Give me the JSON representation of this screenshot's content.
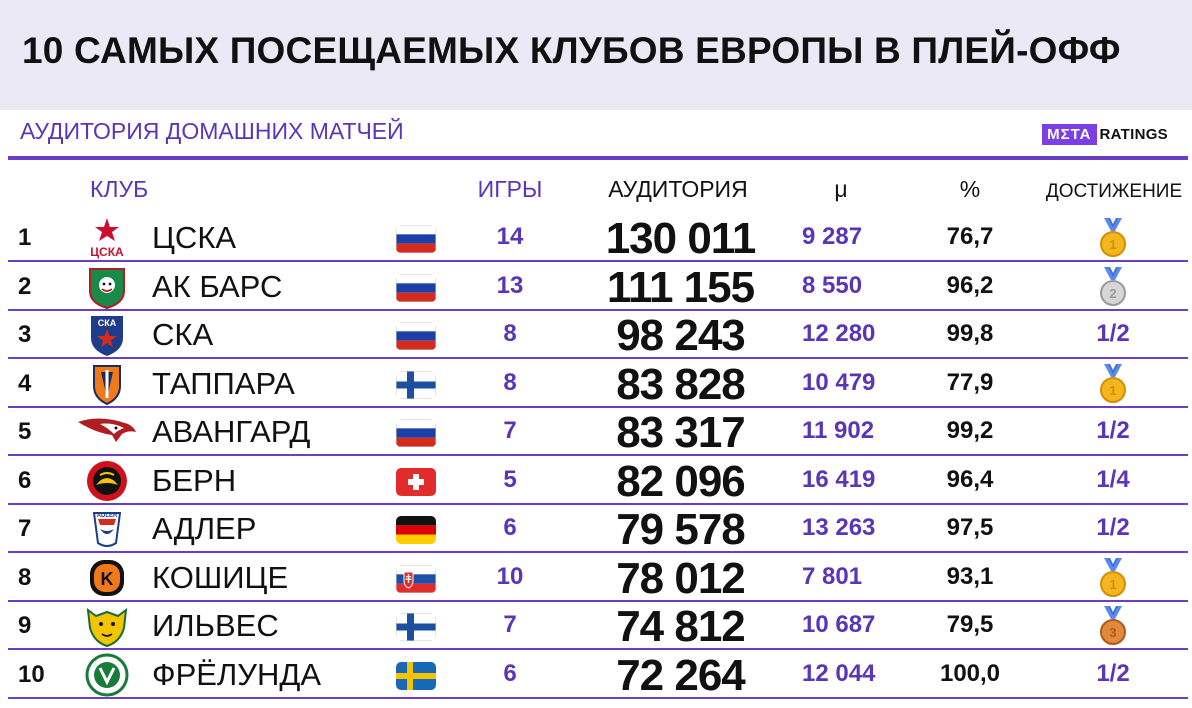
{
  "title": "10 САМЫХ ПОСЕЩАЕМЫХ КЛУБОВ ЕВРОПЫ В  ПЛЕЙ-ОФФ",
  "subtitle": "АУДИТОРИЯ ДОМАШНИХ МАТЧЕЙ",
  "logo": {
    "meta": "MΣTA",
    "ratings": "RATINGS"
  },
  "headers": {
    "club": "КЛУБ",
    "games": "ИГРЫ",
    "audience": "АУДИТОРИЯ",
    "avg": "μ",
    "pct": "%",
    "achievement": "ДОСТИЖЕНИЕ"
  },
  "colors": {
    "accent": "#6a3fc5",
    "accent_text": "#5b35b8",
    "header_bg": "#ece9f6"
  },
  "rows": [
    {
      "rank": "1",
      "club": "ЦСКА",
      "flag": "russia",
      "emblem": "cska-icon",
      "games": "14",
      "audience": "130 011",
      "avg": "9 287",
      "pct": "76,7",
      "achievement": "",
      "medal": "gold"
    },
    {
      "rank": "2",
      "club": "АК БАРС",
      "flag": "russia",
      "emblem": "akbars-icon",
      "games": "13",
      "audience": "111 155",
      "avg": "8 550",
      "pct": "96,2",
      "achievement": "",
      "medal": "silver"
    },
    {
      "rank": "3",
      "club": "СКА",
      "flag": "russia",
      "emblem": "ska-icon",
      "games": "8",
      "audience": "98 243",
      "avg": "12 280",
      "pct": "99,8",
      "achievement": "1/2",
      "medal": ""
    },
    {
      "rank": "4",
      "club": "ТАППАРА",
      "flag": "finland",
      "emblem": "tappara-icon",
      "games": "8",
      "audience": "83 828",
      "avg": "10 479",
      "pct": "77,9",
      "achievement": "",
      "medal": "gold"
    },
    {
      "rank": "5",
      "club": "АВАНГАРД",
      "flag": "russia",
      "emblem": "avangard-icon",
      "games": "7",
      "audience": "83 317",
      "avg": "11 902",
      "pct": "99,2",
      "achievement": "1/2",
      "medal": ""
    },
    {
      "rank": "6",
      "club": "БЕРН",
      "flag": "switzerland",
      "emblem": "bern-icon",
      "games": "5",
      "audience": "82 096",
      "avg": "16 419",
      "pct": "96,4",
      "achievement": "1/4",
      "medal": ""
    },
    {
      "rank": "7",
      "club": "АДЛЕР",
      "flag": "germany",
      "emblem": "adler-icon",
      "games": "6",
      "audience": "79 578",
      "avg": "13 263",
      "pct": "97,5",
      "achievement": "1/2",
      "medal": ""
    },
    {
      "rank": "8",
      "club": "КОШИЦЕ",
      "flag": "slovakia",
      "emblem": "kosice-icon",
      "games": "10",
      "audience": "78 012",
      "avg": "7 801",
      "pct": "93,1",
      "achievement": "",
      "medal": "gold"
    },
    {
      "rank": "9",
      "club": "ИЛЬВЕС",
      "flag": "finland",
      "emblem": "ilves-icon",
      "games": "7",
      "audience": "74 812",
      "avg": "10 687",
      "pct": "79,5",
      "achievement": "",
      "medal": "bronze"
    },
    {
      "rank": "10",
      "club": "ФРЁЛУНДА",
      "flag": "sweden",
      "emblem": "frolunda-icon",
      "games": "6",
      "audience": "72 264",
      "avg": "12 044",
      "pct": "100,0",
      "achievement": "1/2",
      "medal": ""
    }
  ]
}
